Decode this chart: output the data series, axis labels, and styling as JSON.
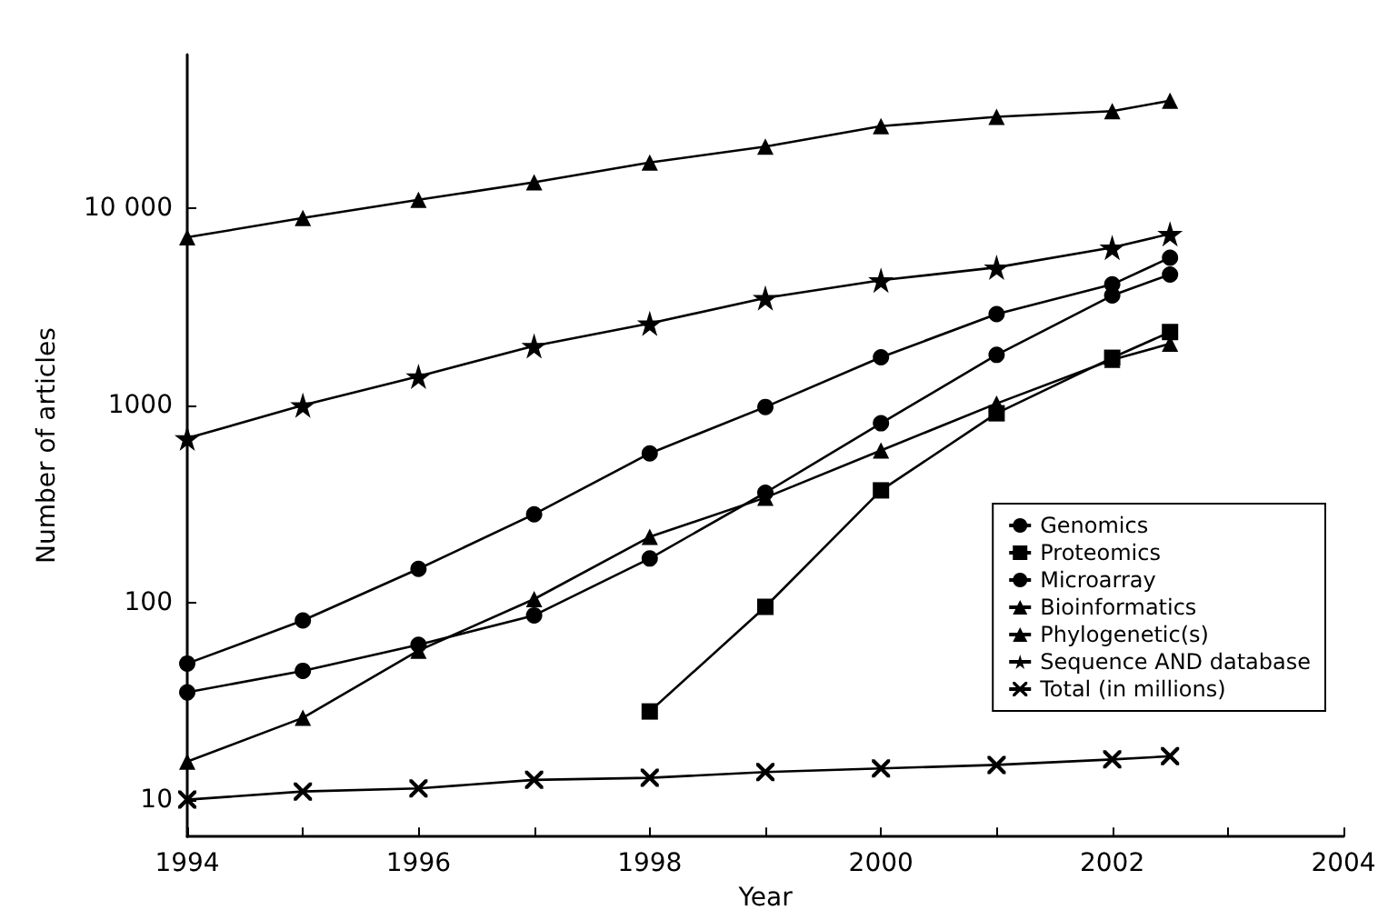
{
  "chart_data": {
    "type": "line",
    "xlabel": "Year",
    "ylabel": "Number of articles",
    "log": "y",
    "grid": false,
    "legend": "bottom right",
    "xlim": [
      1994,
      2004
    ],
    "xticks": [
      1994,
      {
        "value": 1995,
        "label": null
      },
      1996,
      {
        "value": 1997,
        "label": null
      },
      1998,
      {
        "value": 1999,
        "label": null
      },
      2000,
      {
        "value": 2001,
        "label": null
      },
      2002,
      {
        "value": 2003,
        "label": null
      },
      2004
    ],
    "ylim": [
      6.5,
      60000
    ],
    "yticks": [
      10,
      100,
      1000,
      {
        "value": 10000,
        "label": "10 000"
      }
    ],
    "x": [
      1994,
      1995,
      1996,
      1997,
      1998,
      1999,
      2000,
      2001,
      2002,
      2002.5
    ],
    "series": [
      {
        "name": "Genomics",
        "color": "#000000",
        "marker": "circle",
        "values": [
          49,
          81,
          148,
          280,
          570,
          980,
          1750,
          2900,
          4100,
          5600
        ]
      },
      {
        "name": "Proteomics",
        "color": "#000000",
        "marker": "square",
        "values": [
          null,
          null,
          null,
          null,
          28,
          95,
          370,
          910,
          1740,
          2350
        ]
      },
      {
        "name": "Microarray",
        "color": "#000000",
        "marker": "circle",
        "values": [
          35,
          45,
          61,
          86,
          167,
          360,
          810,
          1800,
          3600,
          4600
        ]
      },
      {
        "name": "Bioinformatics",
        "color": "#000000",
        "marker": "triangle",
        "values": [
          15.6,
          26,
          57,
          104,
          215,
          340,
          590,
          1020,
          1700,
          2050
        ]
      },
      {
        "name": "Phylogenetic(s)",
        "color": "#000000",
        "marker": "triangle",
        "values": [
          7100,
          8900,
          11000,
          13500,
          17000,
          20500,
          26000,
          29000,
          31000,
          35000
        ]
      },
      {
        "name": "Sequence AND database",
        "color": "#000000",
        "marker": "star",
        "values": [
          680,
          1000,
          1400,
          2000,
          2600,
          3500,
          4300,
          5000,
          6300,
          7400
        ]
      },
      {
        "name": "Total (in millions)",
        "color": "#000000",
        "marker": "cross",
        "values": [
          10,
          11,
          11.4,
          12.6,
          12.9,
          13.8,
          14.4,
          15,
          16,
          16.6
        ]
      }
    ]
  }
}
